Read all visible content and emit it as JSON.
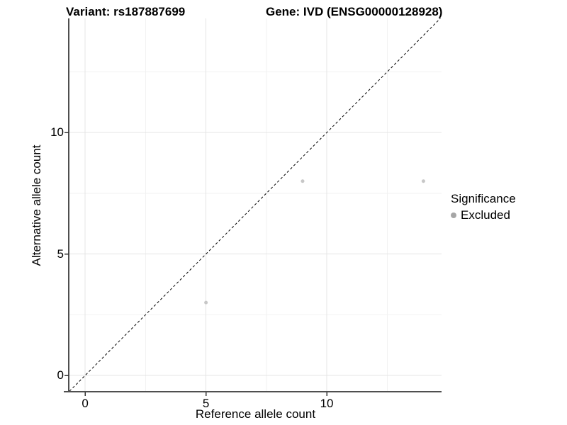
{
  "titles": {
    "variant": "Variant: rs187887699",
    "gene": "Gene: IVD (ENSG00000128928)"
  },
  "chart_data": {
    "type": "scatter",
    "xlabel": "Reference allele count",
    "ylabel": "Alternative allele count",
    "xlim": [
      -0.65,
      14.75
    ],
    "ylim": [
      -0.67,
      14.7
    ],
    "xticks": [
      0,
      5,
      10
    ],
    "yticks": [
      0,
      5,
      10
    ],
    "minor_xticks": [
      2.5,
      7.5,
      12.5
    ],
    "minor_yticks": [
      2.5,
      7.5,
      12.5
    ],
    "grid": true,
    "series": [
      {
        "name": "Excluded",
        "color": "#c7c7c7",
        "point_radius": 2.5,
        "points": [
          [
            5,
            3
          ],
          [
            9,
            8
          ],
          [
            14,
            8
          ]
        ]
      }
    ],
    "reference_line": {
      "kind": "identity",
      "style": "dashed",
      "color": "#000000"
    },
    "legend": {
      "title": "Significance",
      "position": "right",
      "items": [
        {
          "label": "Excluded",
          "color": "#a6a6a6"
        }
      ]
    },
    "style_colors": {
      "grid_major": "#e4e4e4",
      "grid_minor": "#f2f2f2",
      "axis_line": "#4f4f4f",
      "tick_mark": "#333333"
    }
  }
}
